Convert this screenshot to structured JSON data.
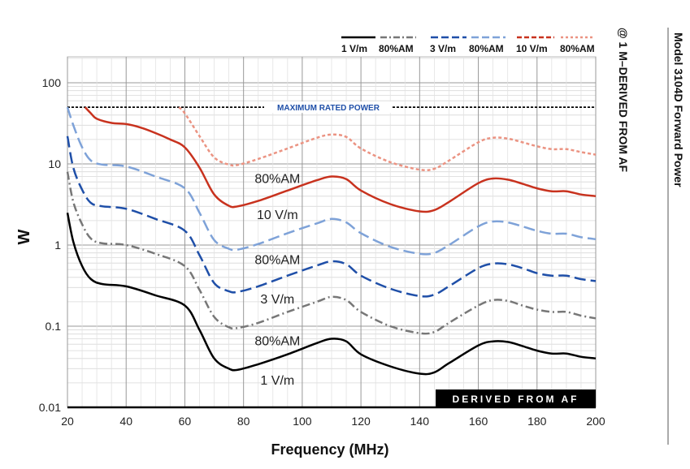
{
  "chart_data": {
    "type": "line",
    "xlabel": "Frequency (MHz)",
    "ylabel": "W",
    "xlim": [
      20,
      200
    ],
    "ylim": [
      0.01,
      200
    ],
    "yscale": "log",
    "x_ticks": [
      "20",
      "40",
      "60",
      "80",
      "100",
      "120",
      "140",
      "160",
      "180",
      "200"
    ],
    "y_ticks": [
      "100",
      "10",
      "1",
      "0.1",
      "0.01"
    ],
    "side_title": "Model 3104D Forward Power",
    "side_subtitle": "@ 1 M–DERIVED FROM AF",
    "max_rated_power": {
      "label": "MAXIMUM RATED POWER",
      "value": 50
    },
    "derived_banner": "DERIVED FROM AF",
    "legend": [
      {
        "label": "1 V/m",
        "series": [
          0,
          1
        ]
      },
      {
        "label": "80%AM",
        "series": [
          0,
          1
        ]
      },
      {
        "label": "3 V/m",
        "series": [
          2,
          3
        ]
      },
      {
        "label": "80%AM",
        "series": [
          2,
          3
        ]
      },
      {
        "label": "10 V/m",
        "series": [
          4,
          5
        ]
      },
      {
        "label": "80%AM",
        "series": [
          4,
          5
        ]
      }
    ],
    "curve_labels": [
      {
        "text": "80%AM",
        "x": 86,
        "y": 5.8
      },
      {
        "text": "10 V/m",
        "x": 86,
        "y": 2.1
      },
      {
        "text": "80%AM",
        "x": 86,
        "y": 0.58
      },
      {
        "text": "3 V/m",
        "x": 86,
        "y": 0.19
      },
      {
        "text": "80%AM",
        "x": 86,
        "y": 0.058
      },
      {
        "text": "1 V/m",
        "x": 86,
        "y": 0.019
      }
    ],
    "series": [
      {
        "name": "1 V/m",
        "color": "#000000",
        "dash": "solid",
        "x": [
          20,
          22,
          25,
          28,
          32,
          40,
          50,
          60,
          65,
          70,
          75,
          78,
          85,
          95,
          105,
          110,
          115,
          120,
          130,
          140,
          145,
          150,
          160,
          165,
          170,
          175,
          180,
          185,
          190,
          195,
          200
        ],
        "y": [
          2.5,
          1.1,
          0.55,
          0.38,
          0.33,
          0.31,
          0.24,
          0.18,
          0.09,
          0.04,
          0.03,
          0.029,
          0.034,
          0.045,
          0.062,
          0.07,
          0.065,
          0.045,
          0.032,
          0.026,
          0.027,
          0.035,
          0.058,
          0.065,
          0.064,
          0.057,
          0.05,
          0.046,
          0.046,
          0.042,
          0.04
        ]
      },
      {
        "name": "1 V/m 80%AM",
        "color": "#777777",
        "dash": "dashdot",
        "x": [
          20,
          22,
          25,
          28,
          32,
          40,
          50,
          60,
          65,
          70,
          75,
          78,
          85,
          95,
          105,
          110,
          115,
          120,
          130,
          140,
          145,
          150,
          160,
          165,
          170,
          175,
          180,
          185,
          190,
          195,
          200
        ],
        "y": [
          8,
          3.4,
          1.8,
          1.2,
          1.05,
          1.0,
          0.78,
          0.55,
          0.28,
          0.13,
          0.097,
          0.095,
          0.11,
          0.15,
          0.2,
          0.23,
          0.21,
          0.15,
          0.1,
          0.082,
          0.085,
          0.11,
          0.18,
          0.21,
          0.205,
          0.18,
          0.16,
          0.15,
          0.15,
          0.135,
          0.125
        ]
      },
      {
        "name": "3 V/m",
        "color": "#1f4fa8",
        "dash": "dash",
        "x": [
          20,
          22,
          25,
          28,
          32,
          40,
          50,
          60,
          65,
          70,
          75,
          78,
          85,
          95,
          105,
          110,
          115,
          120,
          130,
          140,
          145,
          150,
          160,
          165,
          170,
          175,
          180,
          185,
          190,
          195,
          200
        ],
        "y": [
          22,
          9,
          4.8,
          3.3,
          3.0,
          2.8,
          2.1,
          1.5,
          0.75,
          0.34,
          0.27,
          0.265,
          0.31,
          0.42,
          0.56,
          0.63,
          0.58,
          0.42,
          0.29,
          0.235,
          0.245,
          0.31,
          0.52,
          0.59,
          0.58,
          0.52,
          0.45,
          0.42,
          0.42,
          0.38,
          0.36
        ]
      },
      {
        "name": "3 V/m 80%AM",
        "color": "#7ea2d8",
        "dash": "dash",
        "x": [
          20,
          22,
          25,
          28,
          32,
          40,
          50,
          60,
          65,
          70,
          75,
          78,
          85,
          95,
          105,
          110,
          115,
          120,
          130,
          140,
          145,
          150,
          160,
          165,
          170,
          175,
          180,
          185,
          190,
          195,
          200
        ],
        "y": [
          50,
          30,
          16,
          11,
          9.8,
          9.3,
          7.0,
          5.0,
          2.5,
          1.15,
          0.9,
          0.88,
          1.03,
          1.4,
          1.85,
          2.1,
          1.9,
          1.4,
          0.95,
          0.78,
          0.8,
          1.0,
          1.7,
          1.95,
          1.9,
          1.7,
          1.5,
          1.38,
          1.38,
          1.25,
          1.18
        ]
      },
      {
        "name": "10 V/m",
        "color": "#c8321e",
        "dash": "solid",
        "x": [
          26,
          28,
          30,
          35,
          40,
          45,
          50,
          55,
          60,
          65,
          70,
          75,
          78,
          85,
          95,
          105,
          110,
          115,
          120,
          130,
          140,
          145,
          150,
          160,
          165,
          170,
          175,
          180,
          185,
          190,
          195,
          200
        ],
        "y": [
          50,
          42,
          36,
          32,
          31,
          28,
          24,
          20,
          16,
          9,
          4.2,
          3.05,
          3.0,
          3.5,
          4.7,
          6.3,
          7.0,
          6.5,
          4.7,
          3.2,
          2.6,
          2.7,
          3.4,
          5.8,
          6.6,
          6.4,
          5.7,
          5.0,
          4.6,
          4.6,
          4.2,
          4.0
        ]
      },
      {
        "name": "10 V/m 80%AM",
        "color": "#eb9382",
        "dash": "dot",
        "x": [
          58,
          60,
          65,
          70,
          75,
          78,
          85,
          95,
          105,
          110,
          115,
          120,
          130,
          140,
          145,
          150,
          160,
          165,
          170,
          175,
          180,
          185,
          190,
          195,
          200
        ],
        "y": [
          50,
          42,
          22,
          12,
          9.8,
          9.7,
          11.5,
          15.5,
          21,
          23,
          21.5,
          15.5,
          10.5,
          8.5,
          8.7,
          11,
          18.5,
          21,
          20.5,
          18.5,
          16.5,
          15.2,
          15.2,
          14,
          13
        ]
      }
    ]
  }
}
